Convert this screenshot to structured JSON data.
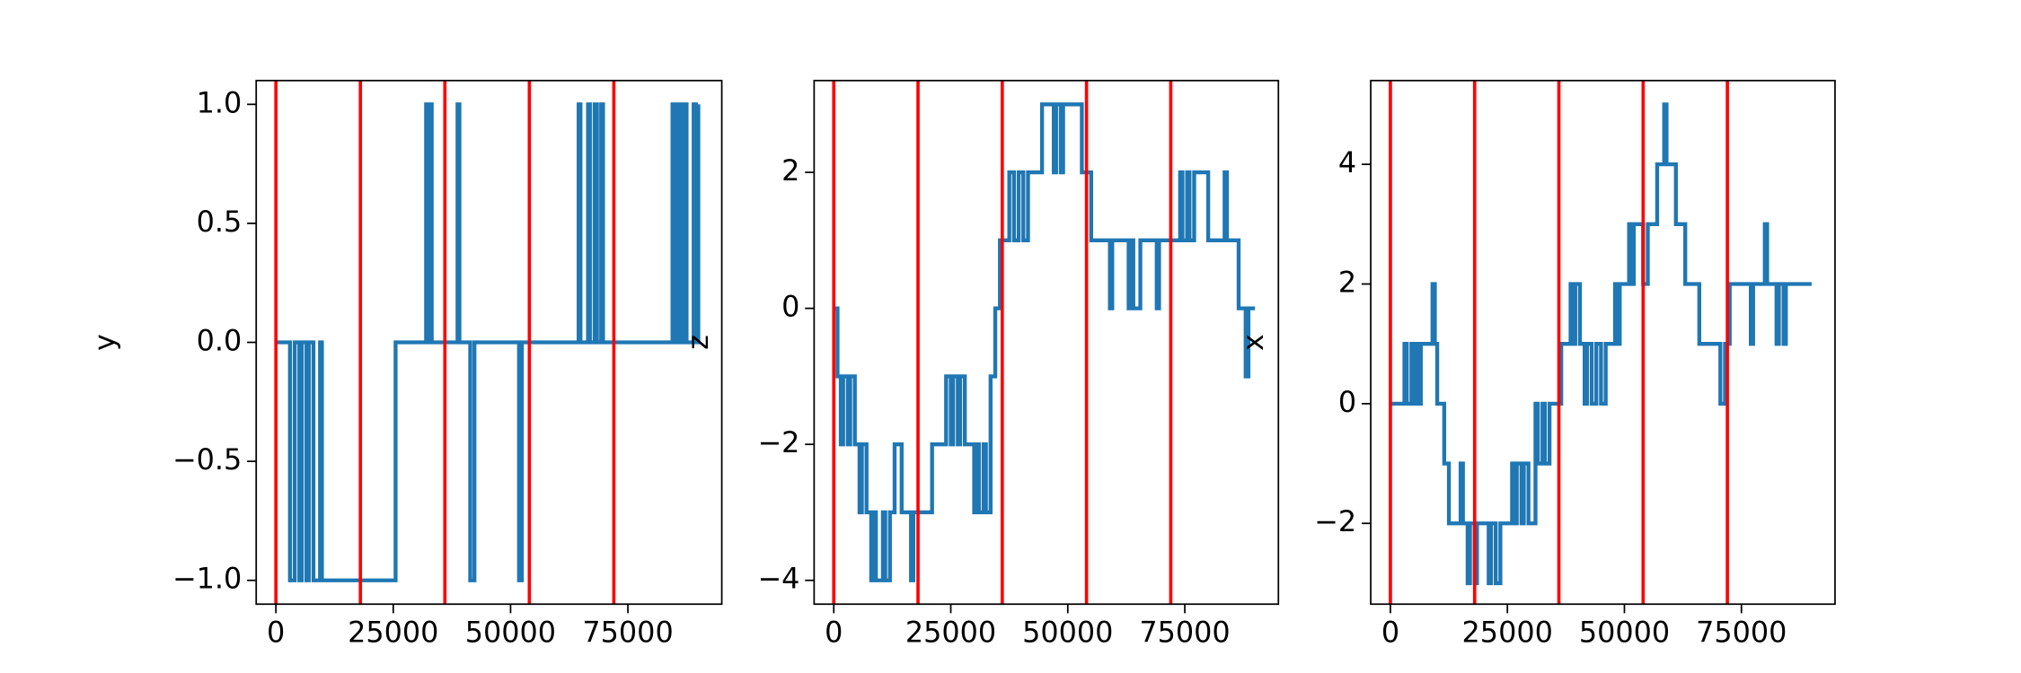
{
  "chart_data": [
    {
      "type": "line",
      "drawstyle": "steps-post",
      "ylabel": "y",
      "x": [
        0,
        3000,
        4000,
        5000,
        5500,
        6500,
        7000,
        8000,
        9400,
        9800,
        25500,
        32000,
        32400,
        32700,
        33200,
        38700,
        39100,
        41400,
        42300,
        51800,
        52400,
        64500,
        64900,
        66500,
        66900,
        67900,
        68400,
        69300,
        69700,
        84500,
        84900,
        85200,
        85700,
        86000,
        86500,
        86800,
        87500,
        89000,
        89500,
        90000
      ],
      "series": [
        {
          "color": "#1f77b4",
          "values": [
            0,
            -1,
            0,
            -1,
            0,
            -1,
            0,
            -1,
            0,
            -1,
            0,
            1,
            0,
            1,
            0,
            1,
            0,
            -1,
            0,
            -1,
            0,
            1,
            0,
            1,
            0,
            1,
            0,
            1,
            0,
            1,
            0,
            1,
            0,
            1,
            0,
            1,
            0,
            1,
            0,
            1
          ]
        }
      ],
      "xlim": [
        -4200,
        95000
      ],
      "ylim": [
        -1.1,
        1.1
      ],
      "xticks": [
        0,
        25000,
        50000,
        75000
      ],
      "yticks": [
        {
          "value": -1,
          "label": "−1.0"
        },
        {
          "value": -0.5,
          "label": "−0.5"
        },
        {
          "value": 0,
          "label": "0.0"
        },
        {
          "value": 0.5,
          "label": "0.5"
        },
        {
          "value": 1,
          "label": "1.0"
        }
      ],
      "vlines": {
        "x": [
          0,
          18000,
          36000,
          54000,
          72000
        ],
        "color": "red"
      }
    },
    {
      "type": "line",
      "drawstyle": "steps-post",
      "ylabel": "z",
      "x": [
        0,
        800,
        1500,
        2000,
        3000,
        3500,
        4500,
        5500,
        6000,
        7000,
        8000,
        8500,
        9000,
        10500,
        11000,
        12000,
        13000,
        14500,
        16500,
        17000,
        21000,
        24000,
        25000,
        25500,
        26500,
        27000,
        28000,
        30000,
        30500,
        31000,
        32000,
        32500,
        33500,
        34500,
        35500,
        37500,
        38500,
        39500,
        40500,
        41500,
        44500,
        47000,
        47500,
        48500,
        49000,
        53000,
        55000,
        59000,
        59500,
        63000,
        63500,
        64000,
        65500,
        69000,
        69500,
        74000,
        74500,
        75500,
        76000,
        77000,
        80000,
        83500,
        84000,
        86500,
        88000,
        88600,
        90000
      ],
      "series": [
        {
          "color": "#1f77b4",
          "values": [
            0,
            -1,
            -2,
            -1,
            -2,
            -1,
            -2,
            -3,
            -2,
            -3,
            -4,
            -3,
            -4,
            -3,
            -4,
            -3,
            -2,
            -3,
            -4,
            -3,
            -2,
            -1,
            -2,
            -1,
            -2,
            -1,
            -2,
            -3,
            -2,
            -3,
            -2,
            -3,
            -1,
            0,
            1,
            2,
            1,
            2,
            1,
            2,
            3,
            2,
            3,
            2,
            3,
            2,
            1,
            0,
            1,
            0,
            1,
            0,
            1,
            0,
            1,
            2,
            1,
            2,
            1,
            2,
            1,
            2,
            1,
            0,
            -1,
            0,
            0
          ]
        }
      ],
      "xlim": [
        -4200,
        95000
      ],
      "ylim": [
        -4.35,
        3.35
      ],
      "xticks": [
        0,
        25000,
        50000,
        75000
      ],
      "yticks": [
        {
          "value": -4,
          "label": "−4"
        },
        {
          "value": -2,
          "label": "−2"
        },
        0,
        2
      ],
      "vlines": {
        "x": [
          0,
          18000,
          36000,
          54000,
          72000
        ],
        "color": "red"
      }
    },
    {
      "type": "line",
      "drawstyle": "steps-post",
      "ylabel": "x",
      "x": [
        0,
        3000,
        3500,
        4500,
        5000,
        5500,
        6000,
        6500,
        9000,
        9500,
        10000,
        11500,
        12500,
        15000,
        15500,
        16500,
        17000,
        18000,
        18500,
        21000,
        21500,
        22500,
        23500,
        26000,
        26500,
        27000,
        28000,
        28500,
        29500,
        31000,
        31500,
        32500,
        33000,
        34000,
        36500,
        38500,
        39000,
        39500,
        40500,
        41500,
        42000,
        43000,
        44000,
        45000,
        46000,
        48000,
        48500,
        49000,
        51000,
        51500,
        52000,
        54000,
        55000,
        57000,
        58500,
        59000,
        61000,
        63000,
        66000,
        70500,
        71500,
        72500,
        77000,
        77500,
        80000,
        80500,
        82500,
        83000,
        84000,
        84500,
        90000
      ],
      "series": [
        {
          "color": "#1f77b4",
          "values": [
            0,
            1,
            0,
            1,
            0,
            1,
            0,
            1,
            2,
            1,
            0,
            -1,
            -2,
            -1,
            -2,
            -3,
            -2,
            -3,
            -2,
            -3,
            -2,
            -3,
            -2,
            -1,
            -2,
            -1,
            -2,
            -1,
            -2,
            0,
            -1,
            0,
            -1,
            0,
            1,
            2,
            1,
            2,
            1,
            0,
            1,
            0,
            1,
            0,
            1,
            2,
            1,
            2,
            3,
            2,
            3,
            2,
            3,
            4,
            5,
            4,
            3,
            2,
            1,
            0,
            1,
            2,
            1,
            2,
            3,
            2,
            1,
            2,
            1,
            2,
            2
          ]
        }
      ],
      "xlim": [
        -4200,
        95000
      ],
      "ylim": [
        -3.35,
        5.4
      ],
      "xticks": [
        0,
        25000,
        50000,
        75000
      ],
      "yticks": [
        {
          "value": -2,
          "label": "−2"
        },
        0,
        2,
        4
      ],
      "vlines": {
        "x": [
          0,
          18000,
          36000,
          54000,
          72000
        ],
        "color": "red"
      }
    }
  ]
}
